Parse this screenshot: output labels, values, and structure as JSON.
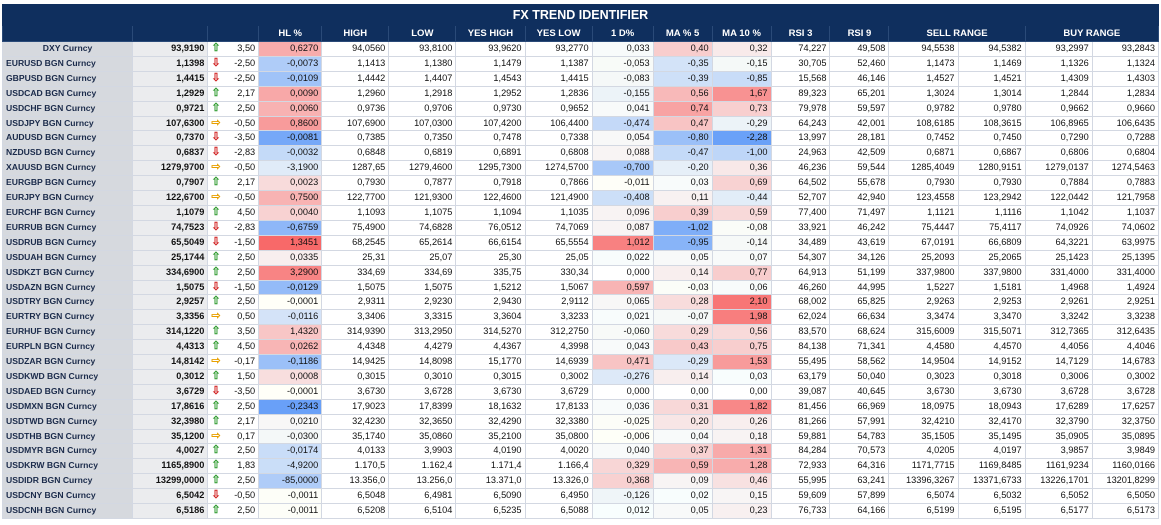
{
  "title": "FX TREND IDENTIFIER",
  "headers": [
    "",
    "",
    "",
    "HL %",
    "HIGH",
    "LOW",
    "YES HIGH",
    "YES LOW",
    "1 D%",
    "MA % 5",
    "MA 10 %",
    "RSI 3",
    "RSI 9",
    "SELL RANGE",
    "",
    "BUY RANGE",
    ""
  ],
  "colors": {
    "header_bg": "#0f2f5e",
    "arrow_up": "#2e9a2e",
    "arrow_down": "#d02020",
    "arrow_flat": "#e8a000"
  },
  "rows": [
    {
      "name": "DXY Curncy",
      "last": "93,9190",
      "dir": "up",
      "chg": "3,50",
      "hl": "0,6270",
      "high": "94,0560",
      "low": "93,8100",
      "yh": "93,9620",
      "yl": "93,2770",
      "d1": "0,033",
      "ma5": "0,40",
      "ma10": "0,32",
      "rsi3": "74,227",
      "rsi9": "49,508",
      "s1": "94,5538",
      "s2": "94,5382",
      "b1": "93,2997",
      "b2": "93,2843"
    },
    {
      "name": "EURUSD BGN Curncy",
      "last": "1,1398",
      "dir": "down",
      "chg": "-2,50",
      "hl": "-0,0073",
      "high": "1,1413",
      "low": "1,1380",
      "yh": "1,1479",
      "yl": "1,1387",
      "d1": "-0,053",
      "ma5": "-0,35",
      "ma10": "-0,15",
      "rsi3": "30,705",
      "rsi9": "52,460",
      "s1": "1,1473",
      "s2": "1,1469",
      "b1": "1,1326",
      "b2": "1,1324"
    },
    {
      "name": "GBPUSD BGN Curncy",
      "last": "1,4415",
      "dir": "down",
      "chg": "-2,50",
      "hl": "-0,0109",
      "high": "1,4442",
      "low": "1,4407",
      "yh": "1,4543",
      "yl": "1,4415",
      "d1": "-0,083",
      "ma5": "-0,39",
      "ma10": "-0,85",
      "rsi3": "15,568",
      "rsi9": "46,146",
      "s1": "1,4527",
      "s2": "1,4521",
      "b1": "1,4309",
      "b2": "1,4303"
    },
    {
      "name": "USDCAD BGN Curncy",
      "last": "1,2929",
      "dir": "up",
      "chg": "2,17",
      "hl": "0,0090",
      "high": "1,2960",
      "low": "1,2918",
      "yh": "1,2952",
      "yl": "1,2836",
      "d1": "-0,155",
      "ma5": "0,56",
      "ma10": "1,67",
      "rsi3": "89,323",
      "rsi9": "65,201",
      "s1": "1,3024",
      "s2": "1,3014",
      "b1": "1,2844",
      "b2": "1,2834"
    },
    {
      "name": "USDCHF BGN Curncy",
      "last": "0,9721",
      "dir": "up",
      "chg": "2,50",
      "hl": "0,0060",
      "high": "0,9736",
      "low": "0,9706",
      "yh": "0,9730",
      "yl": "0,9652",
      "d1": "0,041",
      "ma5": "0,74",
      "ma10": "0,73",
      "rsi3": "79,978",
      "rsi9": "59,597",
      "s1": "0,9782",
      "s2": "0,9780",
      "b1": "0,9662",
      "b2": "0,9660"
    },
    {
      "name": "USDJPY BGN Curncy",
      "last": "107,6300",
      "dir": "flat",
      "chg": "-0,50",
      "hl": "0,8600",
      "high": "107,6900",
      "low": "107,0300",
      "yh": "107,4200",
      "yl": "106,4400",
      "d1": "-0,474",
      "ma5": "0,47",
      "ma10": "-0,29",
      "rsi3": "64,243",
      "rsi9": "42,001",
      "s1": "108,6185",
      "s2": "108,3615",
      "b1": "106,8965",
      "b2": "106,6435"
    },
    {
      "name": "AUDUSD BGN Curncy",
      "last": "0,7370",
      "dir": "down",
      "chg": "-3,50",
      "hl": "-0,0081",
      "high": "0,7385",
      "low": "0,7350",
      "yh": "0,7478",
      "yl": "0,7338",
      "d1": "0,054",
      "ma5": "-0,80",
      "ma10": "-2,28",
      "rsi3": "13,997",
      "rsi9": "28,181",
      "s1": "0,7452",
      "s2": "0,7450",
      "b1": "0,7290",
      "b2": "0,7288"
    },
    {
      "name": "NZDUSD BGN Curncy",
      "last": "0,6837",
      "dir": "down",
      "chg": "-2,83",
      "hl": "-0,0032",
      "high": "0,6848",
      "low": "0,6819",
      "yh": "0,6891",
      "yl": "0,6808",
      "d1": "0,088",
      "ma5": "-0,47",
      "ma10": "-1,00",
      "rsi3": "24,963",
      "rsi9": "42,509",
      "s1": "0,6871",
      "s2": "0,6867",
      "b1": "0,6806",
      "b2": "0,6804"
    },
    {
      "name": "XAUUSD BGN Curncy",
      "last": "1279,9700",
      "dir": "flat",
      "chg": "-0,50",
      "hl": "-3,1900",
      "high": "1287,65",
      "low": "1279,4600",
      "yh": "1295,7300",
      "yl": "1274,5700",
      "d1": "-0,700",
      "ma5": "-0,20",
      "ma10": "0,36",
      "rsi3": "46,236",
      "rsi9": "59,544",
      "s1": "1285,4049",
      "s2": "1280,9151",
      "b1": "1279,0137",
      "b2": "1274,5463"
    },
    {
      "name": "EURGBP BGN Curncy",
      "last": "0,7907",
      "dir": "up",
      "chg": "2,17",
      "hl": "0,0023",
      "high": "0,7930",
      "low": "0,7877",
      "yh": "0,7918",
      "yl": "0,7866",
      "d1": "-0,011",
      "ma5": "0,03",
      "ma10": "0,69",
      "rsi3": "64,502",
      "rsi9": "55,678",
      "s1": "0,7930",
      "s2": "0,7930",
      "b1": "0,7884",
      "b2": "0,7883"
    },
    {
      "name": "EURJPY BGN Curncy",
      "last": "122,6700",
      "dir": "flat",
      "chg": "-0,50",
      "hl": "0,7500",
      "high": "122,7700",
      "low": "121,9300",
      "yh": "122,4600",
      "yl": "121,4900",
      "d1": "-0,408",
      "ma5": "0,11",
      "ma10": "-0,44",
      "rsi3": "52,707",
      "rsi9": "42,940",
      "s1": "123,4558",
      "s2": "123,2942",
      "b1": "122,0442",
      "b2": "121,7958"
    },
    {
      "name": "EURCHF BGN Curncy",
      "last": "1,1079",
      "dir": "up",
      "chg": "4,50",
      "hl": "0,0040",
      "high": "1,1093",
      "low": "1,1075",
      "yh": "1,1094",
      "yl": "1,1035",
      "d1": "0,096",
      "ma5": "0,39",
      "ma10": "0,59",
      "rsi3": "77,400",
      "rsi9": "71,497",
      "s1": "1,1121",
      "s2": "1,1116",
      "b1": "1,1042",
      "b2": "1,1037"
    },
    {
      "name": "EURRUB BGN Curncy",
      "last": "74,7523",
      "dir": "down",
      "chg": "-2,83",
      "hl": "-0,6759",
      "high": "75,4900",
      "low": "74,6828",
      "yh": "76,0512",
      "yl": "74,7069",
      "d1": "0,087",
      "ma5": "-1,02",
      "ma10": "-0,08",
      "rsi3": "33,921",
      "rsi9": "46,242",
      "s1": "75,4447",
      "s2": "75,4117",
      "b1": "74,0926",
      "b2": "74,0602"
    },
    {
      "name": "USDRUB BGN Curncy",
      "last": "65,5049",
      "dir": "down",
      "chg": "-1,50",
      "hl": "1,3451",
      "high": "68,2545",
      "low": "65,2614",
      "yh": "66,6154",
      "yl": "65,5554",
      "d1": "1,012",
      "ma5": "-0,95",
      "ma10": "-0,14",
      "rsi3": "34,489",
      "rsi9": "43,619",
      "s1": "67,0191",
      "s2": "66,6809",
      "b1": "64,3221",
      "b2": "63,9975"
    },
    {
      "name": "USDUAH BGN Curncy",
      "last": "25,1744",
      "dir": "up",
      "chg": "2,50",
      "hl": "0,0335",
      "high": "25,31",
      "low": "25,07",
      "yh": "25,30",
      "yl": "25,05",
      "d1": "0,022",
      "ma5": "0,05",
      "ma10": "0,07",
      "rsi3": "54,307",
      "rsi9": "34,126",
      "s1": "25,2093",
      "s2": "25,2065",
      "b1": "25,1423",
      "b2": "25,1395"
    },
    {
      "name": "USDKZT BGN Curncy",
      "last": "334,6900",
      "dir": "up",
      "chg": "2,50",
      "hl": "3,2900",
      "high": "334,69",
      "low": "334,69",
      "yh": "335,75",
      "yl": "330,34",
      "d1": "0,000",
      "ma5": "0,14",
      "ma10": "0,77",
      "rsi3": "64,913",
      "rsi9": "51,199",
      "s1": "337,9800",
      "s2": "337,9800",
      "b1": "331,4000",
      "b2": "331,4000"
    },
    {
      "name": "USDAZN BGN Curncy",
      "last": "1,5075",
      "dir": "down",
      "chg": "-1,50",
      "hl": "-0,0129",
      "high": "1,5075",
      "low": "1,5075",
      "yh": "1,5212",
      "yl": "1,5067",
      "d1": "0,597",
      "ma5": "-0,03",
      "ma10": "0,06",
      "rsi3": "46,260",
      "rsi9": "44,995",
      "s1": "1,5227",
      "s2": "1,5181",
      "b1": "1,4968",
      "b2": "1,4924"
    },
    {
      "name": "USDTRY BGN Curncy",
      "last": "2,9257",
      "dir": "up",
      "chg": "2,50",
      "hl": "-0,0001",
      "high": "2,9311",
      "low": "2,9230",
      "yh": "2,9430",
      "yl": "2,9112",
      "d1": "0,065",
      "ma5": "0,28",
      "ma10": "2,10",
      "rsi3": "68,002",
      "rsi9": "65,825",
      "s1": "2,9263",
      "s2": "2,9253",
      "b1": "2,9261",
      "b2": "2,9251"
    },
    {
      "name": "EURTRY BGN Curncy",
      "last": "3,3356",
      "dir": "flat",
      "chg": "0,50",
      "hl": "-0,0116",
      "high": "3,3406",
      "low": "3,3315",
      "yh": "3,3604",
      "yl": "3,3233",
      "d1": "0,021",
      "ma5": "-0,07",
      "ma10": "1,98",
      "rsi3": "62,024",
      "rsi9": "66,634",
      "s1": "3,3474",
      "s2": "3,3470",
      "b1": "3,3242",
      "b2": "3,3238"
    },
    {
      "name": "EURHUF BGN Curncy",
      "last": "314,1220",
      "dir": "up",
      "chg": "3,50",
      "hl": "1,4320",
      "high": "314,9390",
      "low": "313,2950",
      "yh": "314,5270",
      "yl": "312,2750",
      "d1": "-0,060",
      "ma5": "0,29",
      "ma10": "0,56",
      "rsi3": "83,570",
      "rsi9": "68,624",
      "s1": "315,6009",
      "s2": "315,5071",
      "b1": "312,7365",
      "b2": "312,6435"
    },
    {
      "name": "EURPLN BGN Curncy",
      "last": "4,4313",
      "dir": "up",
      "chg": "4,50",
      "hl": "0,0262",
      "high": "4,4348",
      "low": "4,4279",
      "yh": "4,4367",
      "yl": "4,3998",
      "d1": "0,043",
      "ma5": "0,43",
      "ma10": "0,75",
      "rsi3": "84,138",
      "rsi9": "71,341",
      "s1": "4,4580",
      "s2": "4,4570",
      "b1": "4,4056",
      "b2": "4,4046"
    },
    {
      "name": "USDZAR BGN Curncy",
      "last": "14,8142",
      "dir": "flat",
      "chg": "-0,17",
      "hl": "-0,1186",
      "high": "14,9425",
      "low": "14,8098",
      "yh": "15,1770",
      "yl": "14,6939",
      "d1": "0,471",
      "ma5": "-0,29",
      "ma10": "1,53",
      "rsi3": "55,495",
      "rsi9": "58,562",
      "s1": "14,9504",
      "s2": "14,9152",
      "b1": "14,7129",
      "b2": "14,6783"
    },
    {
      "name": "USDKWD BGN Curncy",
      "last": "0,3012",
      "dir": "up",
      "chg": "1,50",
      "hl": "0,0008",
      "high": "0,3015",
      "low": "0,3010",
      "yh": "0,3015",
      "yl": "0,3002",
      "d1": "-0,276",
      "ma5": "0,14",
      "ma10": "0,03",
      "rsi3": "63,179",
      "rsi9": "50,040",
      "s1": "0,3023",
      "s2": "0,3018",
      "b1": "0,3006",
      "b2": "0,3002"
    },
    {
      "name": "USDAED BGN Curncy",
      "last": "3,6729",
      "dir": "down",
      "chg": "-3,50",
      "hl": "-0,0001",
      "high": "3,6730",
      "low": "3,6728",
      "yh": "3,6730",
      "yl": "3,6729",
      "d1": "0,000",
      "ma5": "0,00",
      "ma10": "0,00",
      "rsi3": "39,087",
      "rsi9": "40,645",
      "s1": "3,6730",
      "s2": "3,6730",
      "b1": "3,6728",
      "b2": "3,6728"
    },
    {
      "name": "USDMXN BGN Curncy",
      "last": "17,8616",
      "dir": "up",
      "chg": "2,50",
      "hl": "-0,2343",
      "high": "17,9023",
      "low": "17,8399",
      "yh": "18,1632",
      "yl": "17,8133",
      "d1": "0,036",
      "ma5": "0,31",
      "ma10": "1,82",
      "rsi3": "81,456",
      "rsi9": "66,969",
      "s1": "18,0975",
      "s2": "18,0943",
      "b1": "17,6289",
      "b2": "17,6257"
    },
    {
      "name": "USDTWD BGN Curncy",
      "last": "32,3980",
      "dir": "up",
      "chg": "2,17",
      "hl": "0,0210",
      "high": "32,4230",
      "low": "32,3650",
      "yh": "32,4290",
      "yl": "32,3380",
      "d1": "-0,025",
      "ma5": "0,20",
      "ma10": "0,26",
      "rsi3": "81,266",
      "rsi9": "57,991",
      "s1": "32,4210",
      "s2": "32,4170",
      "b1": "32,3790",
      "b2": "32,3750"
    },
    {
      "name": "USDTHB BGN Curncy",
      "last": "35,1200",
      "dir": "flat",
      "chg": "0,17",
      "hl": "-0,0300",
      "high": "35,1740",
      "low": "35,0860",
      "yh": "35,2100",
      "yl": "35,0800",
      "d1": "-0,006",
      "ma5": "0,04",
      "ma10": "0,18",
      "rsi3": "59,881",
      "rsi9": "54,783",
      "s1": "35,1505",
      "s2": "35,1495",
      "b1": "35,0905",
      "b2": "35,0895"
    },
    {
      "name": "USDMYR BGN Curncy",
      "last": "4,0027",
      "dir": "up",
      "chg": "2,50",
      "hl": "-0,0174",
      "high": "4,0133",
      "low": "3,9903",
      "yh": "4,0190",
      "yl": "4,0020",
      "d1": "0,040",
      "ma5": "0,37",
      "ma10": "1,31",
      "rsi3": "84,284",
      "rsi9": "70,573",
      "s1": "4,0205",
      "s2": "4,0197",
      "b1": "3,9857",
      "b2": "3,9849"
    },
    {
      "name": "USDKRW BGN Curncy",
      "last": "1165,8900",
      "dir": "up",
      "chg": "1,83",
      "hl": "-4,9200",
      "high": "1.170,5",
      "low": "1.162,4",
      "yh": "1.171,4",
      "yl": "1.166,4",
      "d1": "0,329",
      "ma5": "0,59",
      "ma10": "1,28",
      "rsi3": "72,933",
      "rsi9": "64,316",
      "s1": "1171,7715",
      "s2": "1169,8485",
      "b1": "1161,9234",
      "b2": "1160,0166"
    },
    {
      "name": "USDIDR BGN Curncy",
      "last": "13299,0000",
      "dir": "up",
      "chg": "2,50",
      "hl": "-85,0000",
      "high": "13.356,0",
      "low": "13.256,0",
      "yh": "13.371,0",
      "yl": "13.326,0",
      "d1": "0,368",
      "ma5": "0,09",
      "ma10": "0,46",
      "rsi3": "55,995",
      "rsi9": "63,241",
      "s1": "13396,3267",
      "s2": "13371,6733",
      "b1": "13226,1701",
      "b2": "13201,8299"
    },
    {
      "name": "USDCNY BGN Curncy",
      "last": "6,5042",
      "dir": "down",
      "chg": "-0,50",
      "hl": "-0,0011",
      "high": "6,5048",
      "low": "6,4981",
      "yh": "6,5090",
      "yl": "6,4950",
      "d1": "-0,126",
      "ma5": "0,02",
      "ma10": "0,15",
      "rsi3": "59,609",
      "rsi9": "57,899",
      "s1": "6,5074",
      "s2": "6,5032",
      "b1": "6,5052",
      "b2": "6,5050"
    },
    {
      "name": "USDCNH BGN Curncy",
      "last": "6,5186",
      "dir": "up",
      "chg": "2,50",
      "hl": "-0,0011",
      "high": "6,5208",
      "low": "6,5104",
      "yh": "6,5235",
      "yl": "6,5088",
      "d1": "0,012",
      "ma5": "0,05",
      "ma10": "0,23",
      "rsi3": "76,733",
      "rsi9": "64,166",
      "s1": "6,5199",
      "s2": "6,5195",
      "b1": "6,5177",
      "b2": "6,5173"
    }
  ]
}
